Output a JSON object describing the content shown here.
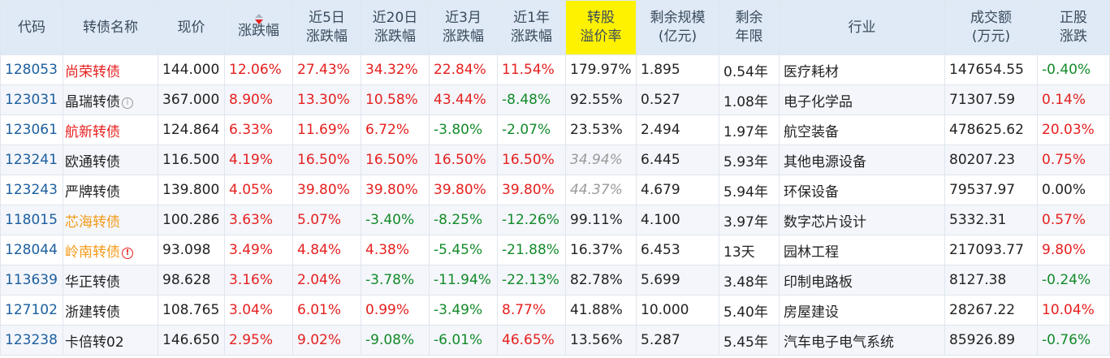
{
  "colors": {
    "header_bg": "#dfeaf6",
    "highlight_header_bg": "#fff200",
    "code_blue": "#1c5e9e",
    "up_red": "#e5201f",
    "down_green": "#138a2a",
    "name_orange": "#f39a17",
    "muted_grey": "#9a9a9a"
  },
  "table": {
    "headers": [
      "代码",
      "转债名称",
      "现价",
      "涨跌幅",
      "近5日涨跌幅",
      "近20日涨跌幅",
      "近3月涨跌幅",
      "近1年涨跌幅",
      "转股溢价率",
      "剩余规模(亿元)",
      "剩余年限",
      "行业",
      "成交额(万元)",
      "正股涨跌"
    ],
    "header_lines": [
      [
        "代码"
      ],
      [
        "转债名称"
      ],
      [
        "现价"
      ],
      [
        "涨跌幅"
      ],
      [
        "近5日",
        "涨跌幅"
      ],
      [
        "近20日",
        "涨跌幅"
      ],
      [
        "近3月",
        "涨跌幅"
      ],
      [
        "近1年",
        "涨跌幅"
      ],
      [
        "转股",
        "溢价率"
      ],
      [
        "剩余规模",
        "(亿元)"
      ],
      [
        "剩余",
        "年限"
      ],
      [
        "行业"
      ],
      [
        "成交额",
        "(万元)"
      ],
      [
        "正股",
        "涨跌"
      ]
    ],
    "sorted_column": "涨跌幅",
    "sort_direction": "descending",
    "rows": [
      {
        "code": "128053",
        "name": "尚荣转债",
        "name_color": "red",
        "name_icon": "",
        "price": "144.000",
        "change": "12.06%",
        "chg5d": "27.43%",
        "chg20d": "34.32%",
        "chg3m": "22.84%",
        "chg1y": "11.54%",
        "premium": "179.97%",
        "premium_style": "black",
        "scale": "1.895",
        "years": "0.54年",
        "industry": "医疗耗材",
        "volume": "147654.55",
        "stock_change": "-0.40%"
      },
      {
        "code": "123031",
        "name": "晶瑞转债",
        "name_color": "black",
        "name_icon": "info",
        "price": "367.000",
        "change": "8.90%",
        "chg5d": "13.30%",
        "chg20d": "10.58%",
        "chg3m": "43.44%",
        "chg1y": "-8.48%",
        "premium": "92.55%",
        "premium_style": "black",
        "scale": "0.527",
        "years": "1.08年",
        "industry": "电子化学品",
        "volume": "71307.59",
        "stock_change": "0.14%"
      },
      {
        "code": "123061",
        "name": "航新转债",
        "name_color": "red",
        "name_icon": "",
        "price": "124.864",
        "change": "6.33%",
        "chg5d": "11.69%",
        "chg20d": "6.72%",
        "chg3m": "-3.80%",
        "chg1y": "-2.07%",
        "premium": "23.53%",
        "premium_style": "black",
        "scale": "2.494",
        "years": "1.97年",
        "industry": "航空装备",
        "volume": "478625.62",
        "stock_change": "20.03%"
      },
      {
        "code": "123241",
        "name": "欧通转债",
        "name_color": "black",
        "name_icon": "",
        "price": "116.500",
        "change": "4.19%",
        "chg5d": "16.50%",
        "chg20d": "16.50%",
        "chg3m": "16.50%",
        "chg1y": "16.50%",
        "premium": "34.94%",
        "premium_style": "grey",
        "scale": "6.445",
        "years": "5.93年",
        "industry": "其他电源设备",
        "volume": "80207.23",
        "stock_change": "0.75%"
      },
      {
        "code": "123243",
        "name": "严牌转债",
        "name_color": "black",
        "name_icon": "",
        "price": "139.800",
        "change": "4.05%",
        "chg5d": "39.80%",
        "chg20d": "39.80%",
        "chg3m": "39.80%",
        "chg1y": "39.80%",
        "premium": "44.37%",
        "premium_style": "grey",
        "scale": "4.679",
        "years": "5.94年",
        "industry": "环保设备",
        "volume": "79537.97",
        "stock_change": "0.00%"
      },
      {
        "code": "118015",
        "name": "芯海转债",
        "name_color": "orange",
        "name_icon": "",
        "price": "100.286",
        "change": "3.63%",
        "chg5d": "5.07%",
        "chg20d": "-3.40%",
        "chg3m": "-8.25%",
        "chg1y": "-12.26%",
        "premium": "99.11%",
        "premium_style": "black",
        "scale": "4.100",
        "years": "3.97年",
        "industry": "数字芯片设计",
        "volume": "5332.31",
        "stock_change": "0.57%"
      },
      {
        "code": "128044",
        "name": "岭南转债",
        "name_color": "orange",
        "name_icon": "warn",
        "price": "93.098",
        "change": "3.49%",
        "chg5d": "4.84%",
        "chg20d": "4.38%",
        "chg3m": "-5.45%",
        "chg1y": "-21.88%",
        "premium": "16.37%",
        "premium_style": "black",
        "scale": "6.453",
        "years": "13天",
        "industry": "园林工程",
        "volume": "217093.77",
        "stock_change": "9.80%"
      },
      {
        "code": "113639",
        "name": "华正转债",
        "name_color": "black",
        "name_icon": "",
        "price": "98.628",
        "change": "3.16%",
        "chg5d": "2.04%",
        "chg20d": "-3.78%",
        "chg3m": "-11.94%",
        "chg1y": "-22.13%",
        "premium": "82.78%",
        "premium_style": "black",
        "scale": "5.699",
        "years": "3.48年",
        "industry": "印制电路板",
        "volume": "8127.38",
        "stock_change": "-0.24%"
      },
      {
        "code": "127102",
        "name": "浙建转债",
        "name_color": "black",
        "name_icon": "",
        "price": "108.765",
        "change": "3.04%",
        "chg5d": "6.01%",
        "chg20d": "0.99%",
        "chg3m": "-3.49%",
        "chg1y": "8.77%",
        "premium": "41.88%",
        "premium_style": "black",
        "scale": "10.000",
        "years": "5.40年",
        "industry": "房屋建设",
        "volume": "28267.22",
        "stock_change": "10.04%"
      },
      {
        "code": "123238",
        "name": "卡倍转02",
        "name_color": "black",
        "name_icon": "",
        "price": "146.650",
        "change": "2.95%",
        "chg5d": "9.02%",
        "chg20d": "-9.08%",
        "chg3m": "-6.01%",
        "chg1y": "46.65%",
        "premium": "13.56%",
        "premium_style": "black",
        "scale": "5.287",
        "years": "5.45年",
        "industry": "汽车电子电气系统",
        "volume": "85926.89",
        "stock_change": "-0.76%"
      }
    ]
  }
}
